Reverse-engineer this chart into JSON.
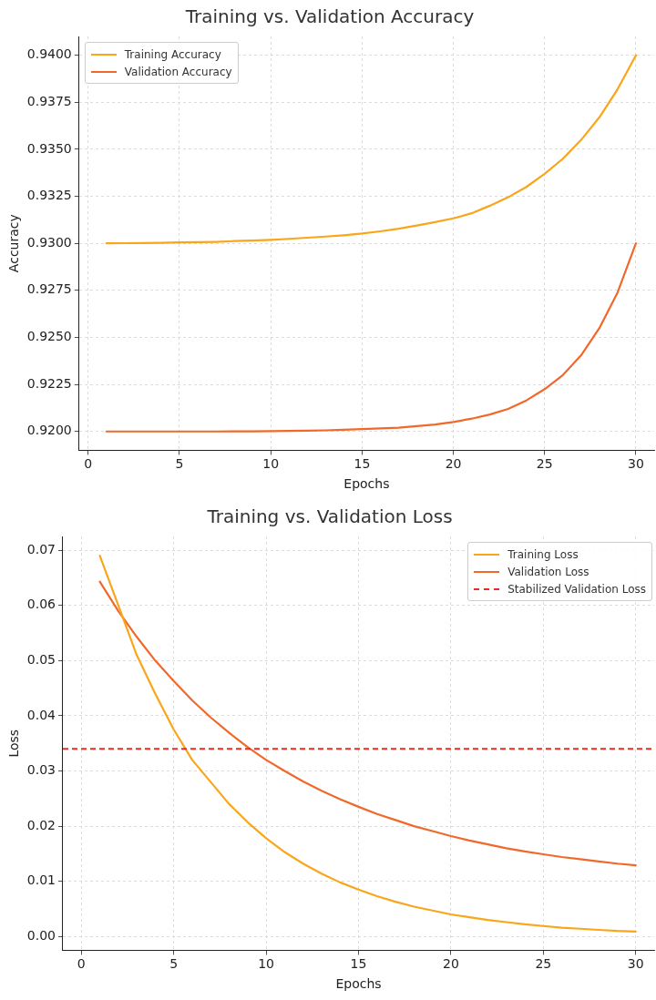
{
  "chart_data": [
    {
      "type": "line",
      "title": "Training vs. Validation Accuracy",
      "xlabel": "Epochs",
      "ylabel": "Accuracy",
      "x": [
        1,
        2,
        3,
        4,
        5,
        6,
        7,
        8,
        9,
        10,
        11,
        12,
        13,
        14,
        15,
        16,
        17,
        18,
        19,
        20,
        21,
        22,
        23,
        24,
        25,
        26,
        27,
        28,
        29,
        30
      ],
      "series": [
        {
          "name": "Training Accuracy",
          "color": "#f9a61a",
          "values": [
            0.93,
            0.93001,
            0.93002,
            0.93003,
            0.93005,
            0.93006,
            0.93008,
            0.93012,
            0.93015,
            0.93019,
            0.93024,
            0.9303,
            0.93036,
            0.93043,
            0.93052,
            0.93064,
            0.93078,
            0.93095,
            0.93113,
            0.93133,
            0.9316,
            0.932,
            0.93245,
            0.933,
            0.9337,
            0.9345,
            0.9355,
            0.9367,
            0.9382,
            0.94
          ]
        },
        {
          "name": "Validation Accuracy",
          "color": "#f0692b",
          "values": [
            0.92,
            0.92,
            0.92,
            0.92,
            0.92,
            0.92,
            0.92,
            0.92001,
            0.92001,
            0.92002,
            0.92003,
            0.92004,
            0.92006,
            0.92009,
            0.92013,
            0.92016,
            0.9202,
            0.92028,
            0.92037,
            0.9205,
            0.92068,
            0.9209,
            0.9212,
            0.92165,
            0.92225,
            0.923,
            0.92405,
            0.9255,
            0.9274,
            0.93
          ]
        }
      ],
      "xlim": [
        -0.5,
        31
      ],
      "xticks": [
        0,
        5,
        10,
        15,
        20,
        25,
        30
      ],
      "ylim": [
        0.919,
        0.941
      ],
      "yticks": [
        {
          "value": 0.92,
          "label": "0.9200"
        },
        {
          "value": 0.9225,
          "label": "0.9225"
        },
        {
          "value": 0.925,
          "label": "0.9250"
        },
        {
          "value": 0.9275,
          "label": "0.9275"
        },
        {
          "value": 0.93,
          "label": "0.9300"
        },
        {
          "value": 0.9325,
          "label": "0.9325"
        },
        {
          "value": 0.935,
          "label": "0.9350"
        },
        {
          "value": 0.9375,
          "label": "0.9375"
        },
        {
          "value": 0.94,
          "label": "0.9400"
        }
      ],
      "grid": true,
      "legend": "top left",
      "marker": "none",
      "line_style": "solid"
    },
    {
      "type": "line",
      "title": "Training vs. Validation Loss",
      "xlabel": "Epochs",
      "ylabel": "Loss",
      "x": [
        1,
        2,
        3,
        4,
        5,
        6,
        7,
        8,
        9,
        10,
        11,
        12,
        13,
        14,
        15,
        16,
        17,
        18,
        19,
        20,
        21,
        22,
        23,
        24,
        25,
        26,
        27,
        28,
        29,
        30
      ],
      "series": [
        {
          "name": "Training Loss",
          "color": "#f9a61a",
          "values": [
            0.069,
            0.06,
            0.051,
            0.044,
            0.0375,
            0.032,
            0.028,
            0.024,
            0.0207,
            0.0178,
            0.0153,
            0.0132,
            0.0114,
            0.0098,
            0.0085,
            0.0073,
            0.0063,
            0.0054,
            0.0047,
            0.004,
            0.0035,
            0.003,
            0.0026,
            0.0022,
            0.0019,
            0.0016,
            0.0014,
            0.0012,
            0.001,
            0.0009
          ]
        },
        {
          "name": "Validation Loss",
          "color": "#f0692b",
          "values": [
            0.0643,
            0.059,
            0.0543,
            0.05,
            0.0463,
            0.0428,
            0.0397,
            0.0369,
            0.0343,
            0.032,
            0.03,
            0.0281,
            0.0264,
            0.0249,
            0.0235,
            0.0222,
            0.0211,
            0.02,
            0.0191,
            0.0182,
            0.0174,
            0.0167,
            0.016,
            0.0154,
            0.0149,
            0.0144,
            0.014,
            0.0136,
            0.0132,
            0.0129
          ]
        }
      ],
      "ref_lines": [
        {
          "axis": "y",
          "value": 0.034,
          "label": "Stabilized Validation Loss",
          "color": "#ee2a24",
          "line_style": "dashed"
        }
      ],
      "xlim": [
        -1,
        31
      ],
      "xticks": [
        0,
        5,
        10,
        15,
        20,
        25,
        30
      ],
      "ylim": [
        -0.0025,
        0.0725
      ],
      "yticks": [
        {
          "value": 0,
          "label": "0.00"
        },
        {
          "value": 0.01,
          "label": "0.01"
        },
        {
          "value": 0.02,
          "label": "0.02"
        },
        {
          "value": 0.03,
          "label": "0.03"
        },
        {
          "value": 0.04,
          "label": "0.04"
        },
        {
          "value": 0.05,
          "label": "0.05"
        },
        {
          "value": 0.06,
          "label": "0.06"
        },
        {
          "value": 0.07,
          "label": "0.07"
        }
      ],
      "grid": true,
      "legend": "top right",
      "marker": "none",
      "line_style": "solid"
    }
  ]
}
